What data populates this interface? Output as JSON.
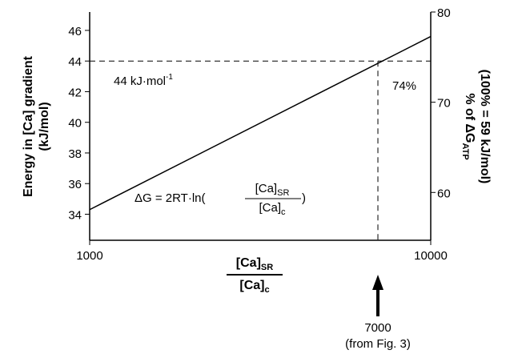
{
  "chart_data": {
    "type": "line",
    "xscale": "log",
    "y_label": [
      "Energy in [Ca] gradient",
      "(kJ/mol)"
    ],
    "y2_label": {
      "main": "% of ΔG",
      "sub": "ATP",
      "line2": "(100% = 59 kJ/mol)"
    },
    "x_label": {
      "numerator": "[Ca]",
      "numerator_sub": "SR",
      "denominator": "[Ca]",
      "denominator_sub": "c"
    },
    "x": [
      1000,
      10000
    ],
    "series": [
      {
        "name": "ΔG",
        "color": "#000000",
        "values": [
          34.3,
          45.6
        ]
      }
    ],
    "xlim": [
      1000,
      10000
    ],
    "xticks": [
      1000,
      10000
    ],
    "ylim": [
      32.3,
      47.2
    ],
    "yticks": [
      34,
      36,
      38,
      40,
      42,
      44,
      46
    ],
    "y2lim": [
      54.7,
      80
    ],
    "y2ticks": [
      60,
      70,
      80
    ],
    "reference_lines": {
      "y": 44,
      "x": 7000
    },
    "annotations": {
      "energy": {
        "text": "44 kJ·mol",
        "sup": "-1"
      },
      "percent": "74%",
      "equation": {
        "lhs": "ΔG = 2RT·ln(",
        "numerator": "[Ca]",
        "numerator_sub": "SR",
        "denominator": "[Ca]",
        "denominator_sub": "c",
        "rhs": ")"
      },
      "arrow_value": "7000",
      "arrow_note": "(from Fig. 3)"
    }
  }
}
